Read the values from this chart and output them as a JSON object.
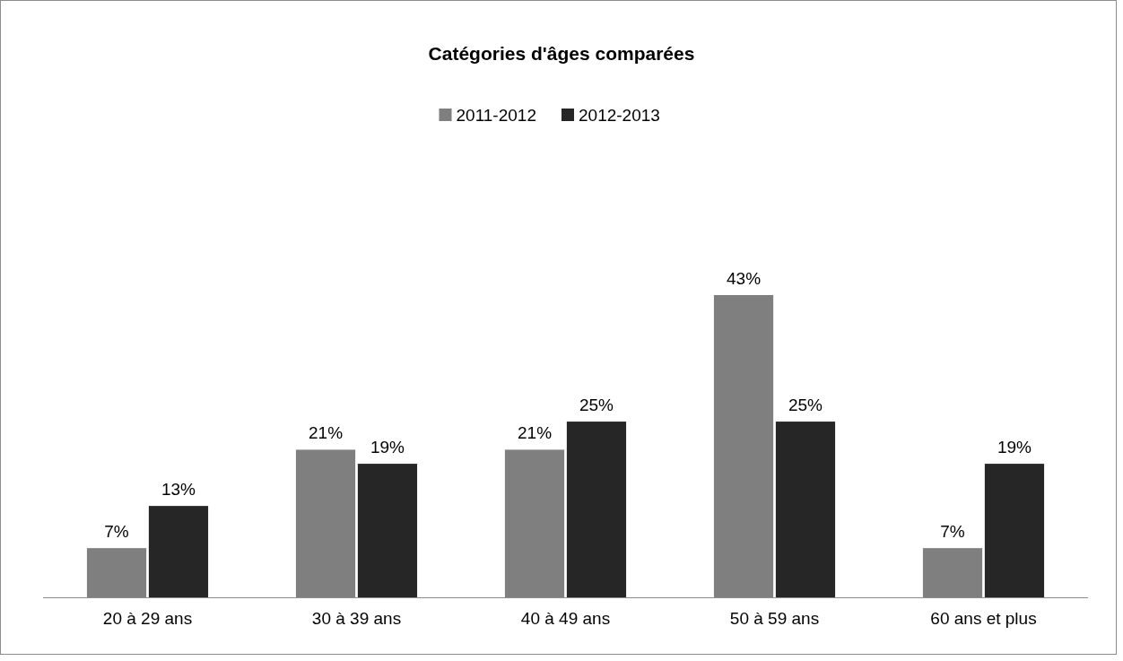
{
  "chart_data": {
    "type": "bar",
    "title": "Catégories d'âges comparées",
    "categories": [
      "20 à 29 ans",
      "30 à 39 ans",
      "40 à 49 ans",
      "50 à 59 ans",
      "60 ans et plus"
    ],
    "legend": "top",
    "series": [
      {
        "name": "2011-2012",
        "color": "#7f7f7f",
        "values": [
          7,
          21,
          21,
          43,
          7
        ],
        "value_labels": [
          "7%",
          "21%",
          "21%",
          "43%",
          "7%"
        ]
      },
      {
        "name": "2012-2013",
        "color": "#262626",
        "values": [
          13,
          19,
          25,
          25,
          19
        ],
        "value_labels": [
          "13%",
          "19%",
          "25%",
          "25%",
          "19%"
        ]
      }
    ]
  }
}
